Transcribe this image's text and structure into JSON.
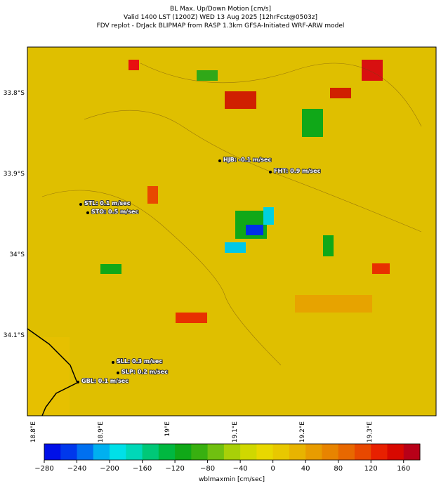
{
  "header": {
    "title": "BL Max. Up/Down Motion [cm/s]",
    "subtitle": "Valid 1400 LST (1200Z) WED 13 Aug 2025 [12hrFcst@0503z]",
    "source": "FDV replot - DrJack BLIPMAP from RASP 1.3km GFSA-Initiated WRF-ARW model"
  },
  "map": {
    "lat_labels": [
      "33.8°S",
      "33.9°S",
      "34°S",
      "34.1°S"
    ],
    "lon_labels": [
      "18.8°E",
      "18.9°E",
      "19°E",
      "19.1°E",
      "19.2°E",
      "19.3°E"
    ],
    "stations": [
      {
        "label": "HJB: -0.1 m/sec"
      },
      {
        "label": "FHT: 0.9 m/sec"
      },
      {
        "label": "STL: 0.1 m/sec"
      },
      {
        "label": "STO: 0.5 m/sec"
      },
      {
        "label": "SLL: 0.3 m/sec"
      },
      {
        "label": "SLP: 0.2 m/sec"
      },
      {
        "label": "GBL: 0.1 m/sec"
      }
    ]
  },
  "colorbar": {
    "label": "wblmaxmin [cm/sec]",
    "lim": [
      -280,
      180
    ],
    "ticks": [
      {
        "value": -280,
        "label": "−280"
      },
      {
        "value": -240,
        "label": "−240"
      },
      {
        "value": -200,
        "label": "−200"
      },
      {
        "value": -160,
        "label": "−160"
      },
      {
        "value": -120,
        "label": "−120"
      },
      {
        "value": -80,
        "label": "−80"
      },
      {
        "value": -40,
        "label": "−40"
      },
      0,
      40,
      80,
      120,
      160
    ],
    "colors": [
      "#0010e8",
      "#0038ec",
      "#0070f0",
      "#00b0f0",
      "#00e0e8",
      "#00d8b8",
      "#00c878",
      "#00b840",
      "#10a818",
      "#38b010",
      "#70c010",
      "#a8d008",
      "#d0d800",
      "#e8d800",
      "#e8c800",
      "#e8b400",
      "#e89c00",
      "#e88400",
      "#e86800",
      "#e84800",
      "#e82000",
      "#d80800",
      "#b80018"
    ]
  }
}
